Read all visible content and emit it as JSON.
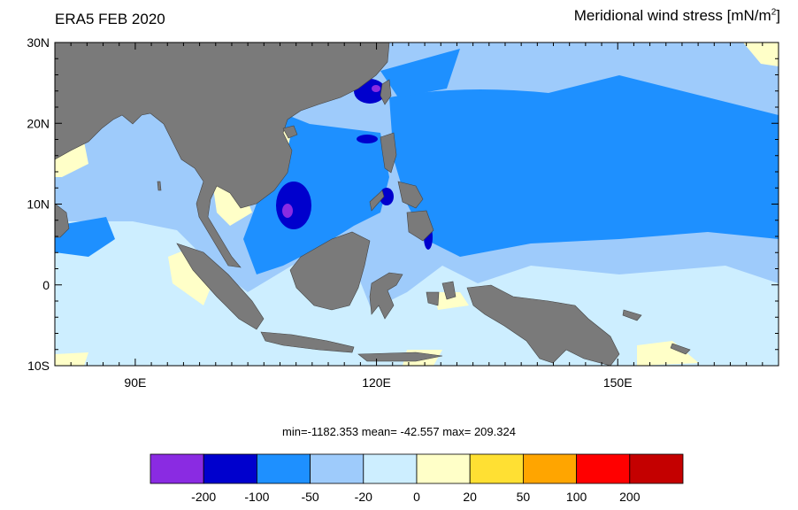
{
  "titles": {
    "left": "ERA5 FEB 2020",
    "right_main": "Meridional wind stress [mN/m",
    "right_sup": "2",
    "right_end": "]"
  },
  "map": {
    "lon_range": [
      80,
      170
    ],
    "lat_range": [
      -10,
      30
    ],
    "lon_ticks": [
      {
        "value": 90,
        "label": "90E"
      },
      {
        "value": 120,
        "label": "120E"
      },
      {
        "value": 150,
        "label": "150E"
      }
    ],
    "lat_ticks": [
      {
        "value": 30,
        "label": "30N"
      },
      {
        "value": 20,
        "label": "20N"
      },
      {
        "value": 10,
        "label": "10N"
      },
      {
        "value": 0,
        "label": "0"
      },
      {
        "value": -10,
        "label": "10S"
      }
    ],
    "land_color": "#7a7a7a"
  },
  "stats": {
    "text": "min=-1182.353  mean= -42.557  max= 209.324"
  },
  "colorbar": {
    "colors": [
      "#8a2be2",
      "#0000cd",
      "#1e90ff",
      "#9ecbfb",
      "#cdeeff",
      "#ffffc8",
      "#ffe033",
      "#ffa500",
      "#ff0000",
      "#c40000"
    ],
    "labels": [
      "-200",
      "-100",
      "-50",
      "-20",
      "0",
      "20",
      "50",
      "100",
      "200"
    ]
  }
}
